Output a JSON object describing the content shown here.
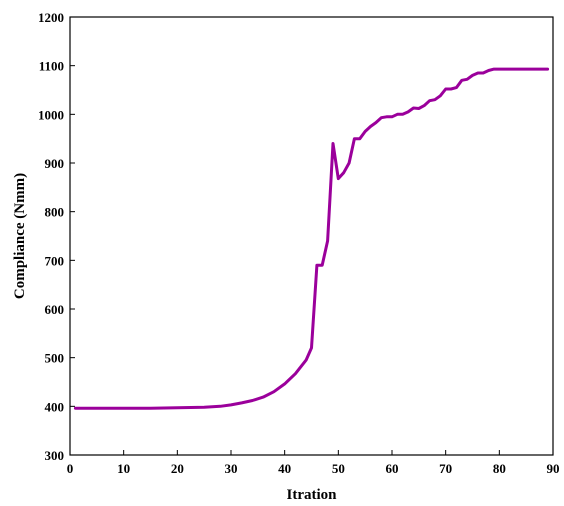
{
  "chart_data": {
    "type": "line",
    "title": "",
    "xlabel": "Itration",
    "ylabel": "Compliance (Nmm)",
    "xlim": [
      0,
      90
    ],
    "ylim": [
      300,
      1200
    ],
    "xticks": [
      0,
      10,
      20,
      30,
      40,
      50,
      60,
      70,
      80,
      90
    ],
    "yticks": [
      300,
      400,
      500,
      600,
      700,
      800,
      900,
      1000,
      1100,
      1200
    ],
    "grid": false,
    "legend": "none",
    "series": [
      {
        "color": "#9b009b",
        "points": [
          [
            1,
            396
          ],
          [
            5,
            396
          ],
          [
            10,
            396
          ],
          [
            15,
            396
          ],
          [
            20,
            397
          ],
          [
            25,
            398
          ],
          [
            28,
            400
          ],
          [
            30,
            403
          ],
          [
            32,
            407
          ],
          [
            34,
            412
          ],
          [
            36,
            419
          ],
          [
            38,
            430
          ],
          [
            40,
            446
          ],
          [
            42,
            467
          ],
          [
            44,
            495
          ],
          [
            45,
            520
          ],
          [
            46,
            690
          ],
          [
            47,
            690
          ],
          [
            48,
            740
          ],
          [
            49,
            940
          ],
          [
            50,
            868
          ],
          [
            51,
            880
          ],
          [
            52,
            900
          ],
          [
            53,
            950
          ],
          [
            54,
            950
          ],
          [
            55,
            965
          ],
          [
            56,
            975
          ],
          [
            57,
            983
          ],
          [
            58,
            993
          ],
          [
            59,
            995
          ],
          [
            60,
            995
          ],
          [
            61,
            1000
          ],
          [
            62,
            1000
          ],
          [
            63,
            1005
          ],
          [
            64,
            1013
          ],
          [
            65,
            1012
          ],
          [
            66,
            1018
          ],
          [
            67,
            1028
          ],
          [
            68,
            1030
          ],
          [
            69,
            1038
          ],
          [
            70,
            1052
          ],
          [
            71,
            1052
          ],
          [
            72,
            1055
          ],
          [
            73,
            1070
          ],
          [
            74,
            1072
          ],
          [
            75,
            1080
          ],
          [
            76,
            1085
          ],
          [
            77,
            1085
          ],
          [
            78,
            1090
          ],
          [
            79,
            1093
          ],
          [
            80,
            1093
          ],
          [
            82,
            1093
          ],
          [
            85,
            1093
          ],
          [
            88,
            1093
          ],
          [
            89,
            1093
          ]
        ]
      }
    ]
  }
}
